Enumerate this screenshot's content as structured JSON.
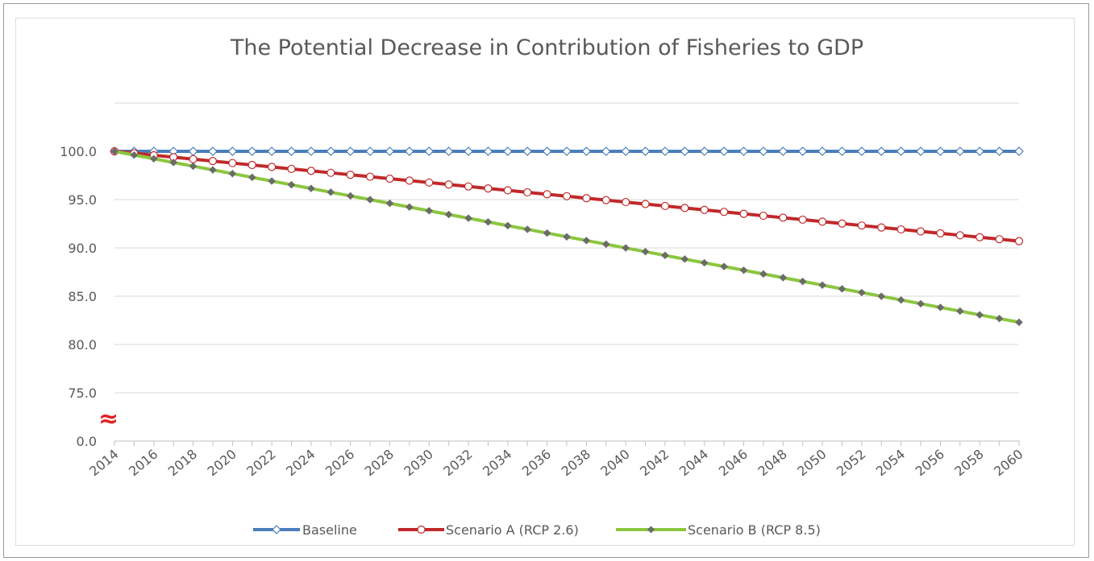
{
  "chart_data": {
    "type": "line",
    "title": "The Potential Decrease in Contribution of Fisheries to GDP",
    "xlabel": "",
    "ylabel": "",
    "x": [
      2014,
      2015,
      2016,
      2017,
      2018,
      2019,
      2020,
      2021,
      2022,
      2023,
      2024,
      2025,
      2026,
      2027,
      2028,
      2029,
      2030,
      2031,
      2032,
      2033,
      2034,
      2035,
      2036,
      2037,
      2038,
      2039,
      2040,
      2041,
      2042,
      2043,
      2044,
      2045,
      2046,
      2047,
      2048,
      2049,
      2050,
      2051,
      2052,
      2053,
      2054,
      2055,
      2056,
      2057,
      2058,
      2059,
      2060
    ],
    "x_tick_labels": [
      "2014",
      "2016",
      "2018",
      "2020",
      "2022",
      "2024",
      "2026",
      "2028",
      "2030",
      "2032",
      "2034",
      "2036",
      "2038",
      "2040",
      "2042",
      "2044",
      "2046",
      "2048",
      "2050",
      "2052",
      "2054",
      "2056",
      "2058",
      "2060"
    ],
    "y_tick_labels": [
      "0.0",
      "75.0",
      "80.0",
      "85.0",
      "90.0",
      "95.0",
      "100.0"
    ],
    "axis_break_symbol": "≈",
    "grid": true,
    "legend_position": "bottom",
    "series": [
      {
        "name": "Baseline",
        "color": "#4a7ebb",
        "marker": "diamond-open",
        "start": 100.0,
        "end": 100.0
      },
      {
        "name": "Scenario A (RCP 2.6)",
        "color": "#c0292b",
        "marker": "circle-open",
        "start": 100.0,
        "end": 90.7
      },
      {
        "name": "Scenario B (RCP 8.5)",
        "color": "#8cc63f",
        "marker": "diamond-filled",
        "start": 100.0,
        "end": 82.3
      }
    ]
  }
}
